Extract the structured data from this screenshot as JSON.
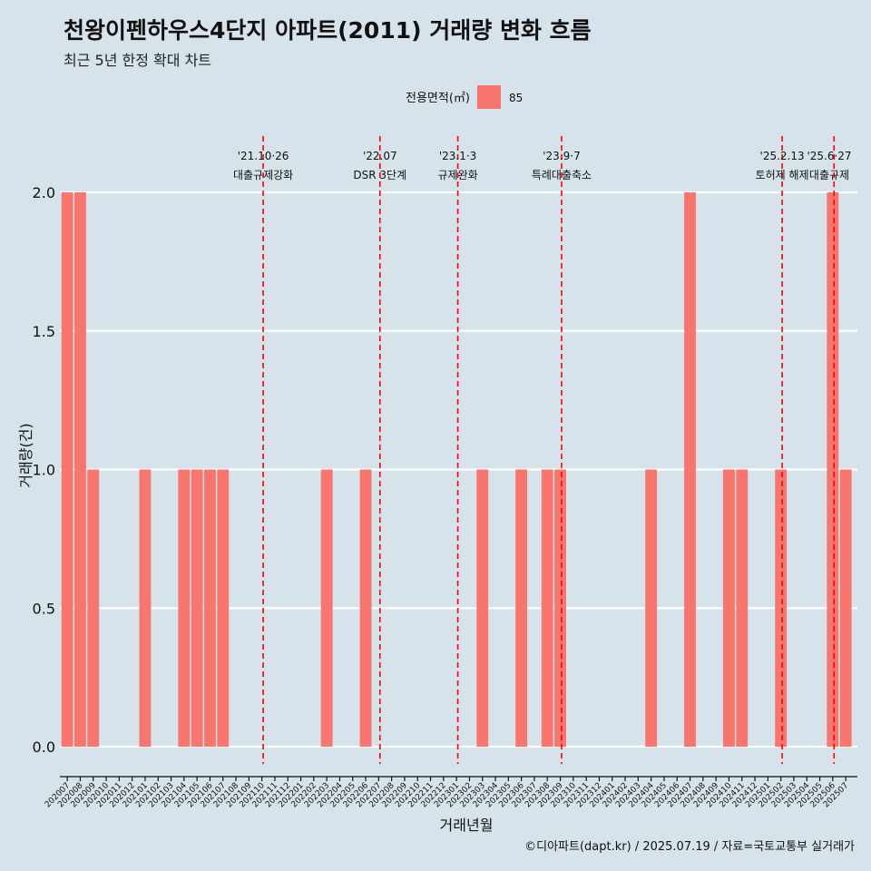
{
  "title": "천왕이펜하우스4단지 아파트(2011) 거래량 변화 흐름",
  "subtitle": "최근 5년 한정 확대 차트",
  "caption": "©디아파트(dapt.kr) / 2025.07.19 / 자료=국토교통부 실거래가",
  "chart_data": {
    "type": "bar",
    "xlabel": "거래년월",
    "ylabel": "거래량(건)",
    "ylim": [
      0,
      2
    ],
    "yticks": [
      "0.0",
      "0.5",
      "1.0",
      "1.5",
      "2.0"
    ],
    "legend": {
      "title": "전용면적(㎡)",
      "position": "top",
      "color": "#F8766D"
    },
    "categories": [
      "202007",
      "202008",
      "202009",
      "202010",
      "202011",
      "202012",
      "202101",
      "202102",
      "202103",
      "202104",
      "202105",
      "202106",
      "202107",
      "202108",
      "202109",
      "202110",
      "202111",
      "202112",
      "202201",
      "202202",
      "202203",
      "202204",
      "202205",
      "202206",
      "202207",
      "202208",
      "202209",
      "202210",
      "202211",
      "202212",
      "202301",
      "202302",
      "202303",
      "202304",
      "202305",
      "202306",
      "202307",
      "202308",
      "202309",
      "202310",
      "202311",
      "202312",
      "202401",
      "202402",
      "202403",
      "202404",
      "202405",
      "202406",
      "202407",
      "202408",
      "202409",
      "202410",
      "202411",
      "202412",
      "202501",
      "202502",
      "202503",
      "202504",
      "202505",
      "202506",
      "202507"
    ],
    "series": [
      {
        "name": "85",
        "color": "#F8766D",
        "values": [
          2,
          2,
          1,
          0,
          0,
          0,
          1,
          0,
          0,
          1,
          1,
          1,
          1,
          0,
          0,
          0,
          0,
          0,
          0,
          0,
          1,
          0,
          0,
          1,
          0,
          0,
          0,
          0,
          0,
          0,
          0,
          0,
          1,
          0,
          0,
          1,
          0,
          1,
          1,
          0,
          0,
          0,
          0,
          0,
          0,
          1,
          0,
          0,
          2,
          0,
          0,
          1,
          1,
          0,
          0,
          1,
          0,
          0,
          0,
          2,
          1
        ]
      }
    ],
    "annotations": [
      {
        "x": "202110",
        "offset": 0.1,
        "date": "'21.10·26",
        "label": "대출규제강화"
      },
      {
        "x": "202207",
        "offset": 0.1,
        "date": "'22.07",
        "label": "DSR 3단계"
      },
      {
        "x": "202301",
        "offset": 0.1,
        "date": "'23.1·3",
        "label": "규제완화"
      },
      {
        "x": "202309",
        "offset": 0.1,
        "date": "'23.9·7",
        "label": "특례대출축소"
      },
      {
        "x": "202502",
        "offset": 0.1,
        "date": "'25.2.13",
        "label": "토허제 해제"
      },
      {
        "x": "202506",
        "offset": 0.1,
        "date": "'25.6·27",
        "label": "대출규제"
      }
    ],
    "grid": true
  }
}
